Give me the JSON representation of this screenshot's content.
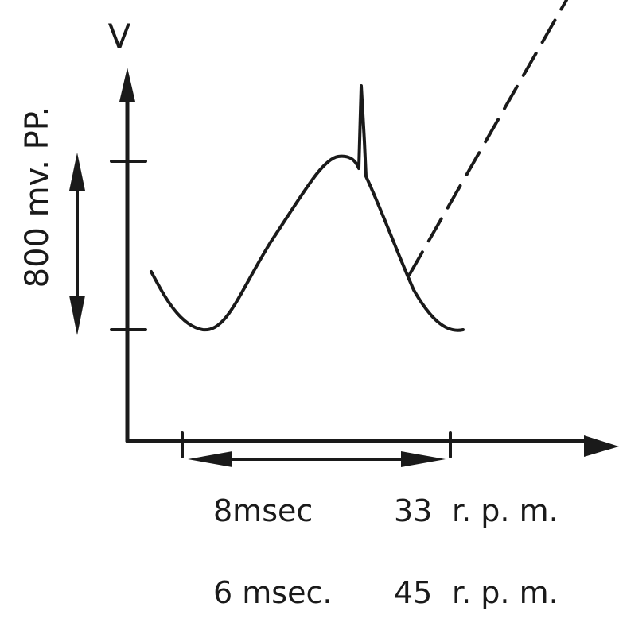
{
  "diagram": {
    "axis_y_label": "V",
    "amplitude_label": "800 mv. PP.",
    "timing": [
      {
        "duration": "8msec",
        "speed": "33",
        "unit": "r. p. m."
      },
      {
        "duration": "6 msec.",
        "speed": "45",
        "unit": "r. p. m."
      }
    ]
  }
}
